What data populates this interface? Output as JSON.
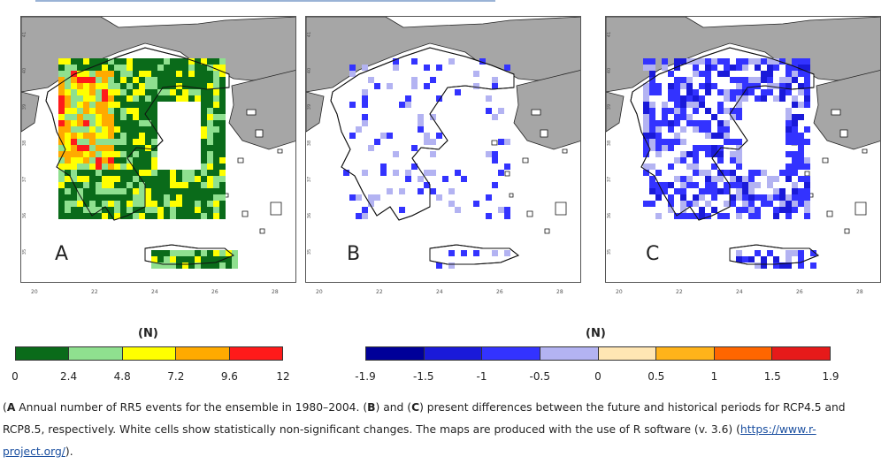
{
  "panels": [
    {
      "letter": "A",
      "y_ticks": [
        "41",
        "40",
        "39",
        "38",
        "37",
        "36",
        "35"
      ],
      "x_ticks": [
        "20",
        "22",
        "24",
        "26",
        "28"
      ]
    },
    {
      "letter": "B",
      "y_ticks": [
        "41",
        "40",
        "39",
        "38",
        "37",
        "36",
        "35"
      ],
      "x_ticks": [
        "20",
        "22",
        "24",
        "26",
        "28"
      ]
    },
    {
      "letter": "C",
      "y_ticks": [
        "41",
        "40",
        "39",
        "38",
        "37",
        "36",
        "35"
      ],
      "x_ticks": [
        "20",
        "22",
        "24",
        "26",
        "28"
      ]
    }
  ],
  "legend_left": {
    "title": "(N)",
    "colors": [
      "#0a6b1a",
      "#8fe08f",
      "#ffff00",
      "#ffaa00",
      "#ff1a1a"
    ],
    "labels": [
      "0",
      "2.4",
      "4.8",
      "7.2",
      "9.6",
      "12"
    ]
  },
  "legend_right": {
    "title": "(N)",
    "colors": [
      "#000099",
      "#1a1ad9",
      "#3333ff",
      "#b3b3f2",
      "#ffe6b3",
      "#ffb31a",
      "#ff6600",
      "#e61a1a"
    ],
    "labels": [
      "-1.9",
      "-1.5",
      "-1",
      "-0.5",
      "0",
      "0.5",
      "1",
      "1.5",
      "1.9"
    ]
  },
  "caption": {
    "a_label": "A",
    "a_text": " Annual number of RR5 events for the ensemble in 1980–2004. (",
    "b_label": "B",
    "mid_text": ") and (",
    "c_label": "C",
    "rest_text": ") present differences between the future and historical periods for RCP4.5 and RCP8.5, respectively. White cells show statistically non-significant changes. The maps are produced with the use of R software (v. 3.6) (",
    "link_text": "https://www.r-project.org/",
    "end_text": ")."
  }
}
